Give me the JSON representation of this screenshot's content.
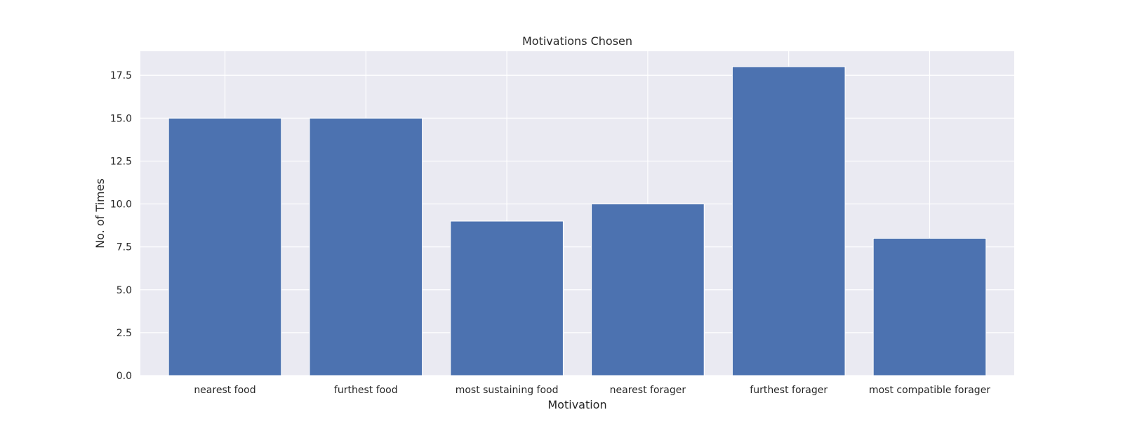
{
  "chart_data": {
    "type": "bar",
    "title": "Motivations Chosen",
    "xlabel": "Motivation",
    "ylabel": "No. of Times",
    "categories": [
      "nearest food",
      "furthest food",
      "most sustaining food",
      "nearest forager",
      "furthest forager",
      "most compatible forager"
    ],
    "values": [
      15,
      15,
      9,
      10,
      18,
      8
    ],
    "ylim": [
      0,
      18.9
    ],
    "yticks": [
      0,
      2.5,
      5,
      7.5,
      10,
      12.5,
      15,
      17.5
    ],
    "ytick_labels": [
      "0.0",
      "2.5",
      "5.0",
      "7.5",
      "10.0",
      "12.5",
      "15.0",
      "17.5"
    ],
    "grid": true,
    "colors": {
      "bar": "#4c72b0",
      "plot_background": "#eaeaf2",
      "grid": "#ffffff"
    }
  }
}
